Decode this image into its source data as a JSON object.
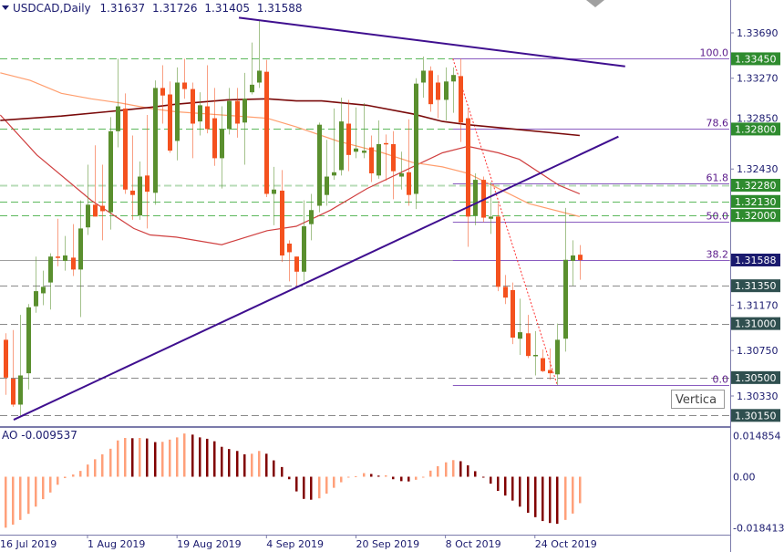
{
  "header": {
    "symbol_timeframe": "USDCAD,Daily",
    "open": "1.31637",
    "high": "1.31726",
    "low": "1.31405",
    "close": "1.31588"
  },
  "tooltip": {
    "text": "Vertica"
  },
  "colors": {
    "bull": "#5a8f2e",
    "bear": "#f4511e",
    "ma_fast": "#d04040",
    "ma_mid": "#ff9e6e",
    "ma_slow": "#7a0a0a",
    "trendline": "#3f0f8f",
    "fib": "#8a5cc0",
    "level_green": "#2e8b2e",
    "level_gray": "#2f4f4f",
    "current_price_box": "#1a1a6e",
    "ao_up": "#ffa07a",
    "ao_down": "#800000",
    "separator": "#7b7bab"
  },
  "chart_data": {
    "type": "candlestick",
    "title": "USDCAD,Daily",
    "ylim": [
      1.2997,
      1.3399
    ],
    "x_ticks": [
      "16 Jul 2019",
      "1 Aug 2019",
      "19 Aug 2019",
      "4 Sep 2019",
      "20 Sep 2019",
      "8 Oct 2019",
      "24 Oct 2019"
    ],
    "y_ticks": [
      "1.33690",
      "1.33270",
      "1.32850",
      "1.32430",
      "1.31170",
      "1.30750",
      "1.30330"
    ],
    "candles_ohlc": [
      [
        1.3085,
        1.3091,
        1.3034,
        1.305
      ],
      [
        1.3049,
        1.3094,
        1.3023,
        1.3025
      ],
      [
        1.3025,
        1.3108,
        1.3014,
        1.3052
      ],
      [
        1.3054,
        1.3118,
        1.3039,
        1.3115
      ],
      [
        1.3116,
        1.3162,
        1.311,
        1.313
      ],
      [
        1.3128,
        1.3149,
        1.3117,
        1.3134
      ],
      [
        1.3138,
        1.3165,
        1.3113,
        1.3162
      ],
      [
        1.3162,
        1.3197,
        1.3153,
        1.3161
      ],
      [
        1.3158,
        1.3181,
        1.3149,
        1.3163
      ],
      [
        1.3161,
        1.3192,
        1.3144,
        1.315
      ],
      [
        1.315,
        1.3214,
        1.3106,
        1.3188
      ],
      [
        1.3189,
        1.3247,
        1.3182,
        1.321
      ],
      [
        1.321,
        1.3265,
        1.3199,
        1.3199
      ],
      [
        1.3209,
        1.3247,
        1.3177,
        1.3204
      ],
      [
        1.3203,
        1.3291,
        1.3187,
        1.3278
      ],
      [
        1.3278,
        1.3345,
        1.3263,
        1.3301
      ],
      [
        1.3299,
        1.3313,
        1.322,
        1.3224
      ],
      [
        1.3223,
        1.3274,
        1.3196,
        1.3219
      ],
      [
        1.32,
        1.325,
        1.3196,
        1.3236
      ],
      [
        1.3237,
        1.3293,
        1.3188,
        1.3222
      ],
      [
        1.3221,
        1.3325,
        1.321,
        1.3318
      ],
      [
        1.3318,
        1.3339,
        1.3285,
        1.3311
      ],
      [
        1.3312,
        1.3324,
        1.3258,
        1.326
      ],
      [
        1.3269,
        1.3337,
        1.3251,
        1.3323
      ],
      [
        1.3323,
        1.3345,
        1.3308,
        1.3317
      ],
      [
        1.3317,
        1.3323,
        1.3253,
        1.3285
      ],
      [
        1.3287,
        1.3314,
        1.3274,
        1.3302
      ],
      [
        1.3301,
        1.3339,
        1.3276,
        1.328
      ],
      [
        1.329,
        1.3318,
        1.3246,
        1.3253
      ],
      [
        1.3253,
        1.3301,
        1.3225,
        1.328
      ],
      [
        1.328,
        1.3318,
        1.3275,
        1.3306
      ],
      [
        1.3306,
        1.3318,
        1.3272,
        1.3285
      ],
      [
        1.3286,
        1.3332,
        1.3247,
        1.3308
      ],
      [
        1.3314,
        1.336,
        1.3312,
        1.3321
      ],
      [
        1.3323,
        1.3381,
        1.3318,
        1.3334
      ],
      [
        1.3333,
        1.3344,
        1.3217,
        1.322
      ],
      [
        1.322,
        1.3245,
        1.3191,
        1.3224
      ],
      [
        1.3223,
        1.3242,
        1.3157,
        1.3163
      ],
      [
        1.3174,
        1.3177,
        1.3139,
        1.3166
      ],
      [
        1.3162,
        1.3162,
        1.3135,
        1.3148
      ],
      [
        1.3148,
        1.3214,
        1.3139,
        1.319
      ],
      [
        1.3192,
        1.322,
        1.3177,
        1.3205
      ],
      [
        1.3209,
        1.3286,
        1.3203,
        1.3284
      ],
      [
        1.3219,
        1.327,
        1.3209,
        1.3236
      ],
      [
        1.3237,
        1.3299,
        1.3233,
        1.324
      ],
      [
        1.3242,
        1.3309,
        1.3237,
        1.3287
      ],
      [
        1.3285,
        1.3307,
        1.3241,
        1.3256
      ],
      [
        1.3259,
        1.33,
        1.3253,
        1.3262
      ],
      [
        1.3258,
        1.3304,
        1.3253,
        1.326
      ],
      [
        1.3263,
        1.3274,
        1.3231,
        1.3239
      ],
      [
        1.3237,
        1.3288,
        1.3234,
        1.3266
      ],
      [
        1.3267,
        1.3275,
        1.3232,
        1.3266
      ],
      [
        1.3266,
        1.3278,
        1.3215,
        1.3241
      ],
      [
        1.3236,
        1.3259,
        1.3224,
        1.3239
      ],
      [
        1.324,
        1.3289,
        1.3209,
        1.3219
      ],
      [
        1.322,
        1.3327,
        1.3206,
        1.3322
      ],
      [
        1.3323,
        1.3347,
        1.3309,
        1.3334
      ],
      [
        1.3334,
        1.3338,
        1.3296,
        1.3303
      ],
      [
        1.3323,
        1.333,
        1.329,
        1.3307
      ],
      [
        1.3307,
        1.3337,
        1.3288,
        1.3324
      ],
      [
        1.3324,
        1.3337,
        1.3295,
        1.333
      ],
      [
        1.3329,
        1.3345,
        1.3268,
        1.3286
      ],
      [
        1.329,
        1.3299,
        1.3171,
        1.3199
      ],
      [
        1.32,
        1.3239,
        1.3191,
        1.3233
      ],
      [
        1.3233,
        1.3236,
        1.3194,
        1.3198
      ],
      [
        1.3197,
        1.3231,
        1.3183,
        1.3199
      ],
      [
        1.3199,
        1.3211,
        1.313,
        1.3134
      ],
      [
        1.3134,
        1.3145,
        1.3118,
        1.3124
      ],
      [
        1.3131,
        1.3138,
        1.3081,
        1.3087
      ],
      [
        1.3086,
        1.3123,
        1.3071,
        1.3092
      ],
      [
        1.3091,
        1.3108,
        1.3068,
        1.307
      ],
      [
        1.307,
        1.3093,
        1.3052,
        1.3071
      ],
      [
        1.3068,
        1.3076,
        1.3055,
        1.3056
      ],
      [
        1.3057,
        1.3077,
        1.3048,
        1.3054
      ],
      [
        1.3053,
        1.31,
        1.3043,
        1.3085
      ],
      [
        1.3086,
        1.3207,
        1.3074,
        1.3159
      ],
      [
        1.3158,
        1.3177,
        1.3135,
        1.3163
      ],
      [
        1.31637,
        1.31726,
        1.31405,
        1.31588
      ]
    ],
    "moving_averages": [
      {
        "color": "#d04040",
        "points": [
          [
            -0.7,
            1.3293
          ],
          [
            4.2,
            1.3256
          ],
          [
            11.5,
            1.3214
          ],
          [
            17.2,
            1.3188
          ],
          [
            19.4,
            1.3182
          ],
          [
            22.9,
            1.318
          ],
          [
            29,
            1.3173
          ],
          [
            35.1,
            1.3186
          ],
          [
            39,
            1.319
          ],
          [
            43.6,
            1.3205
          ],
          [
            48.5,
            1.3225
          ],
          [
            54.6,
            1.3245
          ],
          [
            58.6,
            1.3258
          ],
          [
            62,
            1.3264
          ],
          [
            66.1,
            1.3258
          ],
          [
            68.9,
            1.3252
          ],
          [
            74.2,
            1.3228
          ],
          [
            77,
            1.322
          ]
        ]
      },
      {
        "color": "#ff9e6e",
        "points": [
          [
            -0.7,
            1.3332
          ],
          [
            3.3,
            1.3325
          ],
          [
            7.5,
            1.3313
          ],
          [
            11.5,
            1.3308
          ],
          [
            15.5,
            1.3304
          ],
          [
            19.4,
            1.3299
          ],
          [
            22.9,
            1.3296
          ],
          [
            29,
            1.3293
          ],
          [
            35.1,
            1.329
          ],
          [
            39,
            1.3282
          ],
          [
            44.5,
            1.3269
          ],
          [
            50.6,
            1.3258
          ],
          [
            54.6,
            1.3249
          ],
          [
            58.6,
            1.3245
          ],
          [
            62,
            1.3239
          ],
          [
            66.1,
            1.3225
          ],
          [
            70.2,
            1.3211
          ],
          [
            77,
            1.3199
          ]
        ]
      },
      {
        "color": "#7a0a0a",
        "points": [
          [
            -0.7,
            1.3288
          ],
          [
            7.5,
            1.3292
          ],
          [
            13.6,
            1.3296
          ],
          [
            19.4,
            1.33
          ],
          [
            22.9,
            1.3303
          ],
          [
            29.8,
            1.3307
          ],
          [
            35.1,
            1.3308
          ],
          [
            39,
            1.3306
          ],
          [
            42.4,
            1.3306
          ],
          [
            48.5,
            1.3302
          ],
          [
            54.6,
            1.3294
          ],
          [
            58.6,
            1.3287
          ],
          [
            62,
            1.3284
          ],
          [
            68.1,
            1.328
          ],
          [
            77,
            1.3274
          ]
        ]
      }
    ],
    "trendlines": [
      {
        "name": "descending-resistance",
        "from": [
          31.3,
          1.3383
        ],
        "to": [
          83.1,
          1.3338
        ]
      },
      {
        "name": "ascending-support",
        "from": [
          1.1,
          1.3011
        ],
        "to": [
          82.2,
          1.3273
        ]
      }
    ],
    "fibonacci": {
      "from": [
        60.0,
        1.3345
      ],
      "to": [
        74.0,
        1.3043
      ],
      "levels": [
        {
          "label": "100.0",
          "ratio": 1.0
        },
        {
          "label": "78.6",
          "ratio": 0.786
        },
        {
          "label": "61.8",
          "ratio": 0.618
        },
        {
          "label": "50.0",
          "ratio": 0.5
        },
        {
          "label": "38.2",
          "ratio": 0.382
        },
        {
          "label": "0.0",
          "ratio": 0.0
        }
      ]
    },
    "horizontal_levels": [
      {
        "label": "1.33450",
        "price": 1.3345,
        "style": "green"
      },
      {
        "label": "1.32800",
        "price": 1.328,
        "style": "green"
      },
      {
        "label": "1.32280",
        "price": 1.3228,
        "style": "lightgreen"
      },
      {
        "label": "1.32130",
        "price": 1.3213,
        "style": "green"
      },
      {
        "label": "1.32000",
        "price": 1.32,
        "style": "green"
      },
      {
        "label": "1.31350",
        "price": 1.3135,
        "style": "gray"
      },
      {
        "label": "1.31000",
        "price": 1.31,
        "style": "gray"
      },
      {
        "label": "1.30500",
        "price": 1.305,
        "style": "gray"
      },
      {
        "label": "1.30150",
        "price": 1.3015,
        "style": "gray"
      }
    ],
    "current_price": {
      "label": "1.31588",
      "price": 1.31588
    },
    "ao": {
      "label": "AO -0.009537",
      "y_ticks": [
        "0.014854",
        "0.00",
        "-0.018413"
      ],
      "ylim": [
        -0.018413,
        0.014854
      ],
      "values": [
        -0.0184,
        -0.0173,
        -0.0156,
        -0.0134,
        -0.0108,
        -0.0081,
        -0.0057,
        -0.0029,
        -0.0005,
        0.0008,
        0.0021,
        0.0044,
        0.0063,
        0.0081,
        0.0101,
        0.0131,
        0.014,
        0.0139,
        0.014,
        0.0138,
        0.0125,
        0.0126,
        0.0134,
        0.0142,
        0.0156,
        0.0152,
        0.0142,
        0.0137,
        0.0128,
        0.0108,
        0.01,
        0.0093,
        0.0081,
        0.0083,
        0.0093,
        0.0083,
        0.0059,
        0.0035,
        -0.0009,
        -0.0053,
        -0.008,
        -0.0083,
        -0.0078,
        -0.0061,
        -0.004,
        -0.002,
        -0.0003,
        0.0002,
        0.0013,
        0.001,
        0.0004,
        0.0005,
        -0.0009,
        -0.0016,
        -0.0017,
        -0.0011,
        0.0,
        0.0022,
        0.0038,
        0.0052,
        0.006,
        0.0056,
        0.0041,
        0.002,
        -0.0003,
        -0.0025,
        -0.0051,
        -0.0068,
        -0.0086,
        -0.0108,
        -0.013,
        -0.0146,
        -0.016,
        -0.0167,
        -0.017,
        -0.0156,
        -0.0133,
        -0.009537
      ]
    }
  }
}
